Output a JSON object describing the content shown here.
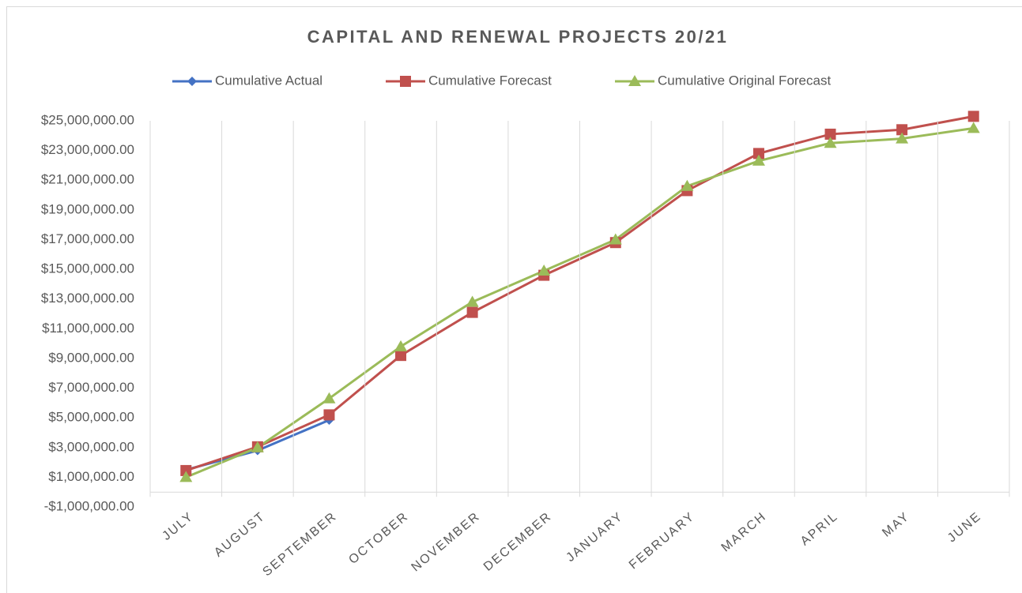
{
  "chart_data": {
    "type": "line",
    "title": "CAPITAL AND RENEWAL PROJECTS 20/21",
    "categories": [
      "JULY",
      "AUGUST",
      "SEPTEMBER",
      "OCTOBER",
      "NOVEMBER",
      "DECEMBER",
      "JANUARY",
      "FEBRUARY",
      "MARCH",
      "APRIL",
      "MAY",
      "JUNE"
    ],
    "series": [
      {
        "name": "Cumulative Actual",
        "color": "#4472c4",
        "marker": "diamond",
        "values": [
          1500000,
          2800000,
          4850000,
          null,
          null,
          null,
          null,
          null,
          null,
          null,
          null,
          null
        ]
      },
      {
        "name": "Cumulative Forecast",
        "color": "#c0504d",
        "marker": "square",
        "values": [
          1450000,
          3050000,
          5200000,
          9200000,
          12100000,
          14600000,
          16800000,
          20300000,
          22800000,
          24100000,
          24400000,
          25300000
        ]
      },
      {
        "name": "Cumulative Original Forecast",
        "color": "#9bbb59",
        "marker": "triangle",
        "values": [
          1000000,
          3000000,
          6300000,
          9800000,
          12800000,
          14900000,
          17000000,
          20600000,
          22300000,
          23500000,
          23800000,
          24500000
        ]
      }
    ],
    "ylim": [
      -1000000,
      25000000
    ],
    "yticks": [
      {
        "value": -1000000,
        "label": "-$1,000,000.00"
      },
      {
        "value": 1000000,
        "label": "$1,000,000.00"
      },
      {
        "value": 3000000,
        "label": "$3,000,000.00"
      },
      {
        "value": 5000000,
        "label": "$5,000,000.00"
      },
      {
        "value": 7000000,
        "label": "$7,000,000.00"
      },
      {
        "value": 9000000,
        "label": "$9,000,000.00"
      },
      {
        "value": 11000000,
        "label": "$11,000,000.00"
      },
      {
        "value": 13000000,
        "label": "$13,000,000.00"
      },
      {
        "value": 15000000,
        "label": "$15,000,000.00"
      },
      {
        "value": 17000000,
        "label": "$17,000,000.00"
      },
      {
        "value": 19000000,
        "label": "$19,000,000.00"
      },
      {
        "value": 21000000,
        "label": "$21,000,000.00"
      },
      {
        "value": 23000000,
        "label": "$23,000,000.00"
      },
      {
        "value": 25000000,
        "label": "$25,000,000.00"
      }
    ],
    "grid": "x",
    "legend": "top"
  }
}
